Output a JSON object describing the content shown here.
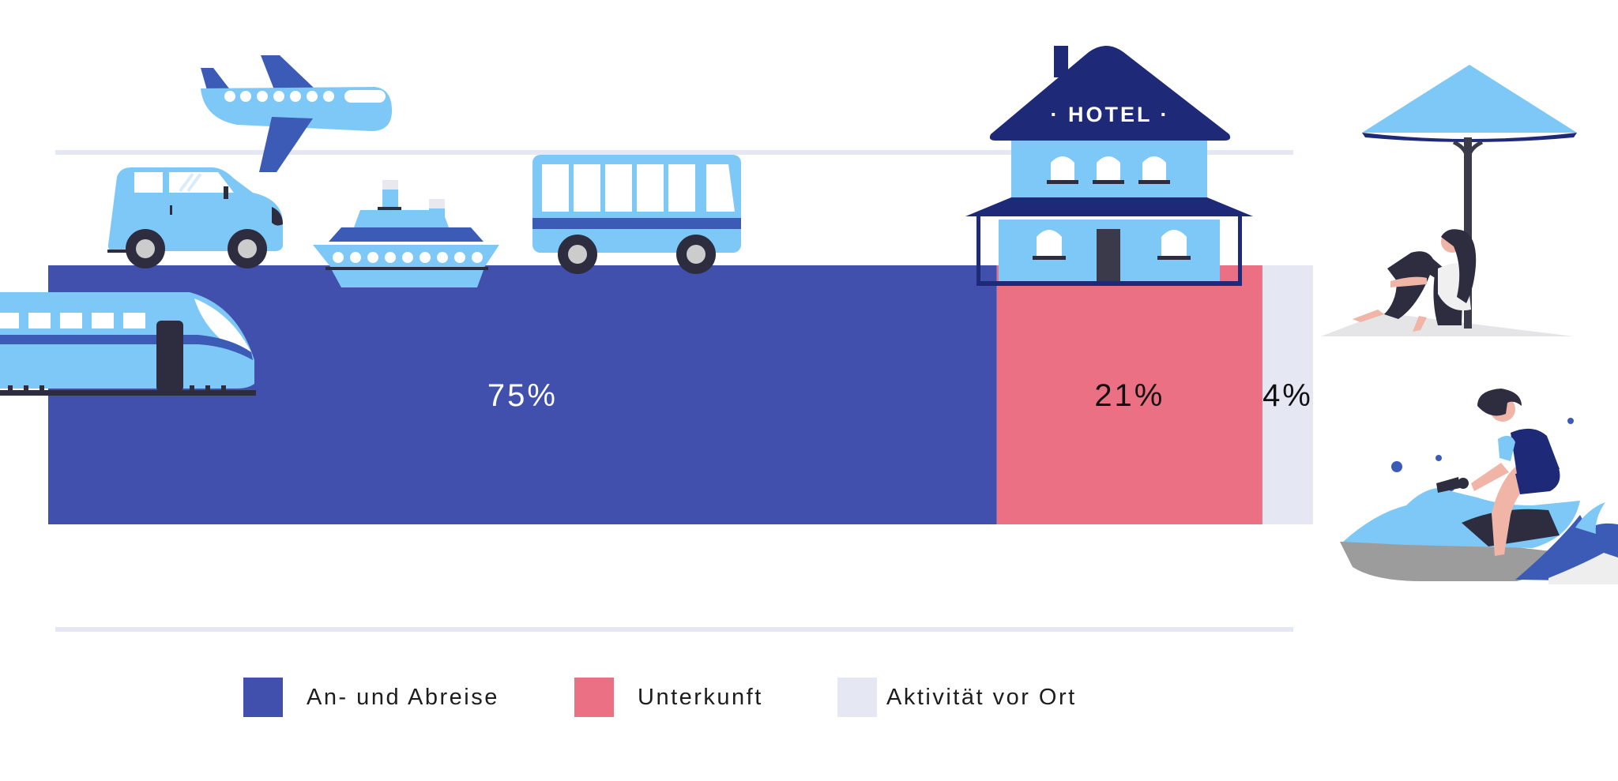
{
  "chart_data": {
    "type": "bar",
    "orientation": "horizontal-stacked",
    "title": "",
    "xlabel": "",
    "ylabel": "",
    "xlim": [
      0,
      100
    ],
    "grid": false,
    "legend_position": "bottom",
    "series": [
      {
        "name": "An- und Abreise",
        "value": 75,
        "label": "75%",
        "color": "#4150ad",
        "label_color": "#ffffff"
      },
      {
        "name": "Unterkunft",
        "value": 21,
        "label": "21%",
        "color": "#ec7083",
        "label_color": "#111111"
      },
      {
        "name": "Aktivität vor Ort",
        "value": 4,
        "label": "4%",
        "color": "#e5e7f3",
        "label_color": "#111111"
      }
    ]
  },
  "illustrations": {
    "hotel_sign": "· HOTEL ·",
    "icons": [
      "airplane-icon",
      "car-icon",
      "ship-icon",
      "bus-icon",
      "train-icon",
      "hotel-icon",
      "beach-umbrella-icon",
      "jetski-icon"
    ]
  }
}
